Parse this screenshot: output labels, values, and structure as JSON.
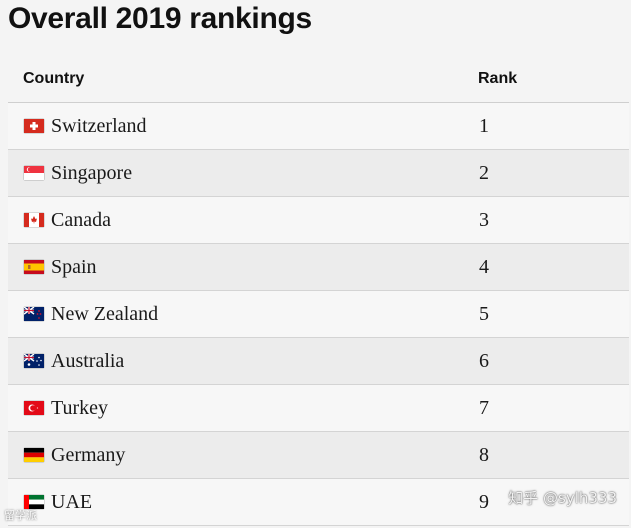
{
  "title": "Overall 2019 rankings",
  "table": {
    "headers": {
      "country": "Country",
      "rank": "Rank"
    },
    "rows": [
      {
        "country": "Switzerland",
        "rank": "1",
        "flag_icon": "switzerland-flag-icon"
      },
      {
        "country": "Singapore",
        "rank": "2",
        "flag_icon": "singapore-flag-icon"
      },
      {
        "country": "Canada",
        "rank": "3",
        "flag_icon": "canada-flag-icon"
      },
      {
        "country": "Spain",
        "rank": "4",
        "flag_icon": "spain-flag-icon"
      },
      {
        "country": "New Zealand",
        "rank": "5",
        "flag_icon": "new-zealand-flag-icon"
      },
      {
        "country": "Australia",
        "rank": "6",
        "flag_icon": "australia-flag-icon"
      },
      {
        "country": "Turkey",
        "rank": "7",
        "flag_icon": "turkey-flag-icon"
      },
      {
        "country": "Germany",
        "rank": "8",
        "flag_icon": "germany-flag-icon"
      },
      {
        "country": "UAE",
        "rank": "9",
        "flag_icon": "uae-flag-icon"
      }
    ]
  },
  "watermarks": {
    "right": "知乎 @sylh333",
    "left": "留学派"
  }
}
